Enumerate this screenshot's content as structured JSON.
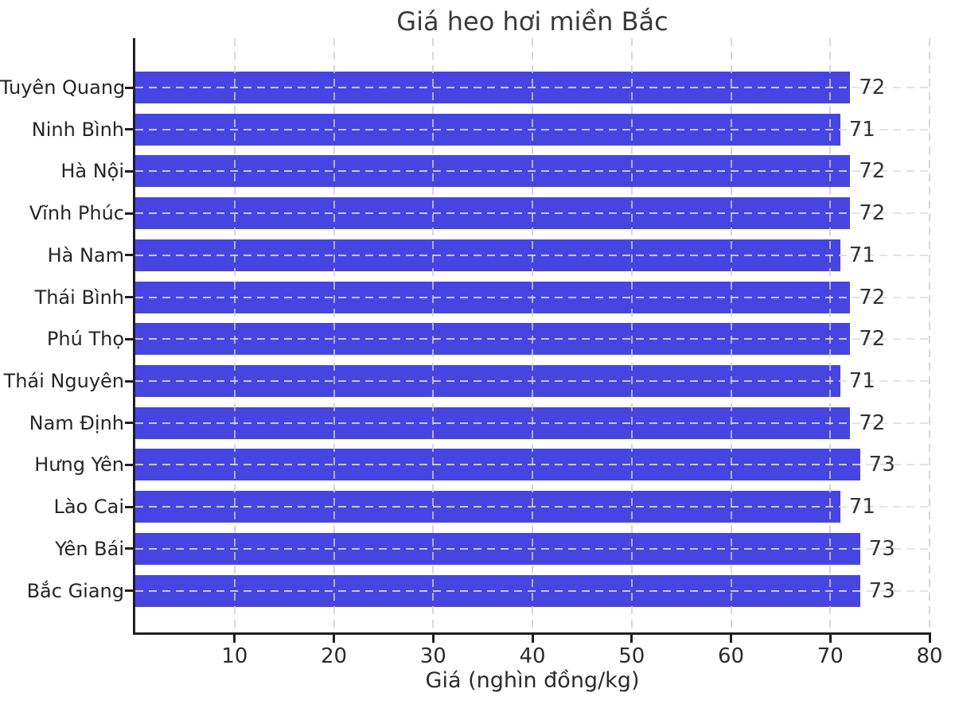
{
  "chart_data": {
    "type": "bar",
    "orientation": "horizontal",
    "title": "Giá heo hơi miền Bắc",
    "xlabel": "Giá (nghìn đồng/kg)",
    "ylabel": "",
    "categories": [
      "Tuyên Quang",
      "Ninh Bình",
      "Hà Nội",
      "Vĩnh Phúc",
      "Hà Nam",
      "Thái Bình",
      "Phú Thọ",
      "Thái Nguyên",
      "Nam Định",
      "Hưng Yên",
      "Lào Cai",
      "Yên Bái",
      "Bắc Giang"
    ],
    "values": [
      72,
      71,
      72,
      72,
      71,
      72,
      72,
      71,
      72,
      73,
      71,
      73,
      73
    ],
    "x_ticks": [
      "10",
      "20",
      "30",
      "40",
      "50",
      "60",
      "70",
      "80"
    ],
    "x_tick_values": [
      10,
      20,
      30,
      40,
      50,
      60,
      70,
      80
    ],
    "xlim": [
      0,
      80
    ],
    "grid": true,
    "grid_style": "dashed",
    "legend": "none",
    "bar_value_labels_shown": true
  },
  "colors": {
    "bar": "#4645e2",
    "spine": "#1f1f1f",
    "grid": "#d0d0d4",
    "title_text": "#3a3a3a",
    "tick_text": "#2b2b2b",
    "value_text": "#333333",
    "background": "#ffffff"
  }
}
